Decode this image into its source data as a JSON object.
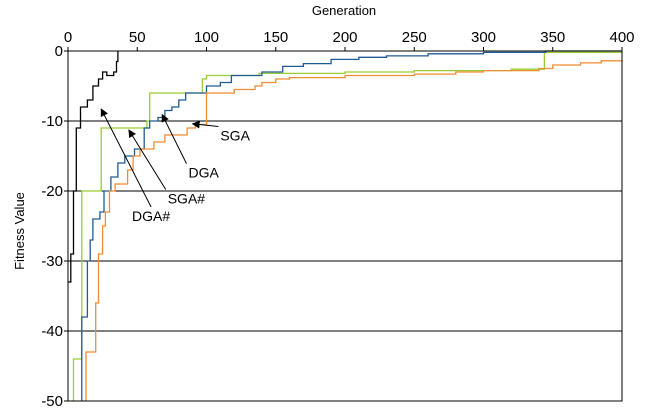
{
  "chart_data": {
    "type": "line",
    "title": "",
    "xlabel": "Generation",
    "ylabel": "Fitness Value",
    "xlim": [
      0,
      400
    ],
    "ylim": [
      -50,
      0
    ],
    "x_ticks": [
      0,
      50,
      100,
      150,
      200,
      250,
      300,
      350,
      400
    ],
    "y_ticks": [
      0,
      -10,
      -20,
      -30,
      -40,
      -50
    ],
    "x_axis_position": "top",
    "grid": "horizontal",
    "legend": "none",
    "series": [
      {
        "name": "DGA#",
        "color": "#000000",
        "points": [
          [
            0,
            -33
          ],
          [
            2,
            -33
          ],
          [
            2,
            -29
          ],
          [
            4,
            -29
          ],
          [
            4,
            -20
          ],
          [
            6,
            -20
          ],
          [
            6,
            -11
          ],
          [
            9,
            -11
          ],
          [
            9,
            -8
          ],
          [
            14,
            -8
          ],
          [
            14,
            -7
          ],
          [
            18,
            -7
          ],
          [
            18,
            -5
          ],
          [
            22,
            -5
          ],
          [
            22,
            -4
          ],
          [
            25,
            -4
          ],
          [
            25,
            -3
          ],
          [
            28,
            -3
          ],
          [
            28,
            -3.5
          ],
          [
            33,
            -3.5
          ],
          [
            33,
            -3
          ],
          [
            35,
            -3
          ],
          [
            35,
            -1.5
          ],
          [
            36,
            -1.5
          ],
          [
            36,
            0
          ]
        ]
      },
      {
        "name": "SGA#",
        "color": "#9acd32",
        "points": [
          [
            4,
            -50
          ],
          [
            4,
            -44
          ],
          [
            10,
            -44
          ],
          [
            10,
            -20
          ],
          [
            24,
            -20
          ],
          [
            24,
            -11
          ],
          [
            57,
            -11
          ],
          [
            57,
            -10
          ],
          [
            59,
            -10
          ],
          [
            59,
            -6
          ],
          [
            97,
            -6
          ],
          [
            97,
            -4
          ],
          [
            100,
            -4
          ],
          [
            100,
            -3.5
          ],
          [
            138,
            -3.5
          ],
          [
            138,
            -3.2
          ],
          [
            200,
            -3.2
          ],
          [
            200,
            -3
          ],
          [
            250,
            -3
          ],
          [
            250,
            -2.8
          ],
          [
            320,
            -2.8
          ],
          [
            320,
            -2.6
          ],
          [
            344,
            -2.6
          ],
          [
            344,
            -0.2
          ],
          [
            400,
            -0.2
          ]
        ]
      },
      {
        "name": "DGA",
        "color": "#1f5a96",
        "points": [
          [
            10,
            -50
          ],
          [
            10,
            -38
          ],
          [
            14,
            -38
          ],
          [
            14,
            -30
          ],
          [
            16,
            -30
          ],
          [
            16,
            -27
          ],
          [
            18,
            -27
          ],
          [
            18,
            -24
          ],
          [
            23,
            -24
          ],
          [
            23,
            -23
          ],
          [
            26,
            -23
          ],
          [
            26,
            -20
          ],
          [
            31,
            -20
          ],
          [
            31,
            -18
          ],
          [
            36,
            -18
          ],
          [
            36,
            -16
          ],
          [
            41,
            -16
          ],
          [
            41,
            -15
          ],
          [
            48,
            -15
          ],
          [
            48,
            -14
          ],
          [
            55,
            -14
          ],
          [
            55,
            -11
          ],
          [
            59,
            -11
          ],
          [
            59,
            -10
          ],
          [
            65,
            -10
          ],
          [
            65,
            -9.5
          ],
          [
            70,
            -9.5
          ],
          [
            70,
            -8.5
          ],
          [
            75,
            -8.5
          ],
          [
            75,
            -8
          ],
          [
            80,
            -8
          ],
          [
            80,
            -7
          ],
          [
            85,
            -7
          ],
          [
            85,
            -6
          ],
          [
            100,
            -6
          ],
          [
            100,
            -5
          ],
          [
            110,
            -5
          ],
          [
            110,
            -4.5
          ],
          [
            118,
            -4.5
          ],
          [
            118,
            -3.5
          ],
          [
            140,
            -3.5
          ],
          [
            140,
            -3
          ],
          [
            155,
            -3
          ],
          [
            155,
            -2.2
          ],
          [
            170,
            -2.2
          ],
          [
            170,
            -1.8
          ],
          [
            190,
            -1.8
          ],
          [
            190,
            -1.2
          ],
          [
            210,
            -1.2
          ],
          [
            210,
            -0.9
          ],
          [
            230,
            -0.9
          ],
          [
            230,
            -0.7
          ],
          [
            260,
            -0.7
          ],
          [
            260,
            -0.4
          ],
          [
            300,
            -0.4
          ],
          [
            300,
            -0.2
          ],
          [
            345,
            -0.2
          ],
          [
            345,
            0
          ],
          [
            400,
            0
          ]
        ]
      },
      {
        "name": "SGA",
        "color": "#f08c32",
        "points": [
          [
            13,
            -50
          ],
          [
            13,
            -43
          ],
          [
            20,
            -43
          ],
          [
            20,
            -36
          ],
          [
            22,
            -36
          ],
          [
            22,
            -29
          ],
          [
            25,
            -29
          ],
          [
            25,
            -25
          ],
          [
            27,
            -25
          ],
          [
            27,
            -23
          ],
          [
            30,
            -23
          ],
          [
            30,
            -20
          ],
          [
            34,
            -20
          ],
          [
            34,
            -19
          ],
          [
            43,
            -19
          ],
          [
            43,
            -17
          ],
          [
            47,
            -17
          ],
          [
            47,
            -15
          ],
          [
            52,
            -15
          ],
          [
            52,
            -14
          ],
          [
            62,
            -14
          ],
          [
            62,
            -13
          ],
          [
            70,
            -13
          ],
          [
            70,
            -12
          ],
          [
            86,
            -12
          ],
          [
            86,
            -11
          ],
          [
            92,
            -11
          ],
          [
            92,
            -10.5
          ],
          [
            100,
            -10.5
          ],
          [
            100,
            -6
          ],
          [
            120,
            -6
          ],
          [
            120,
            -5.5
          ],
          [
            135,
            -5.5
          ],
          [
            135,
            -5
          ],
          [
            140,
            -5
          ],
          [
            140,
            -4.5
          ],
          [
            150,
            -4.5
          ],
          [
            150,
            -4
          ],
          [
            160,
            -4
          ],
          [
            160,
            -3.8
          ],
          [
            200,
            -3.8
          ],
          [
            200,
            -3.5
          ],
          [
            250,
            -3.5
          ],
          [
            250,
            -3.3
          ],
          [
            280,
            -3.3
          ],
          [
            280,
            -3
          ],
          [
            300,
            -3
          ],
          [
            300,
            -2.8
          ],
          [
            340,
            -2.8
          ],
          [
            340,
            -2.5
          ],
          [
            350,
            -2.5
          ],
          [
            350,
            -2
          ],
          [
            370,
            -2
          ],
          [
            370,
            -1.7
          ],
          [
            385,
            -1.7
          ],
          [
            385,
            -1.4
          ],
          [
            400,
            -1.4
          ]
        ]
      }
    ],
    "annotations": [
      {
        "text": "DGA#",
        "color": "#000000",
        "label_at": [
          60,
          -24
        ],
        "arrow_to": [
          24,
          -8.3
        ],
        "anchor": "middle"
      },
      {
        "text": "SGA#",
        "color": "#000000",
        "label_at": [
          72,
          -21.5
        ],
        "arrow_to": [
          44,
          -11.3
        ],
        "anchor": "start"
      },
      {
        "text": "DGA",
        "color": "#000000",
        "label_at": [
          87,
          -17.8
        ],
        "arrow_to": [
          68,
          -9.1
        ],
        "anchor": "start"
      },
      {
        "text": "SGA",
        "color": "#000000",
        "label_at": [
          110,
          -12.5
        ],
        "arrow_to": [
          90,
          -10.4
        ],
        "anchor": "start"
      }
    ]
  }
}
